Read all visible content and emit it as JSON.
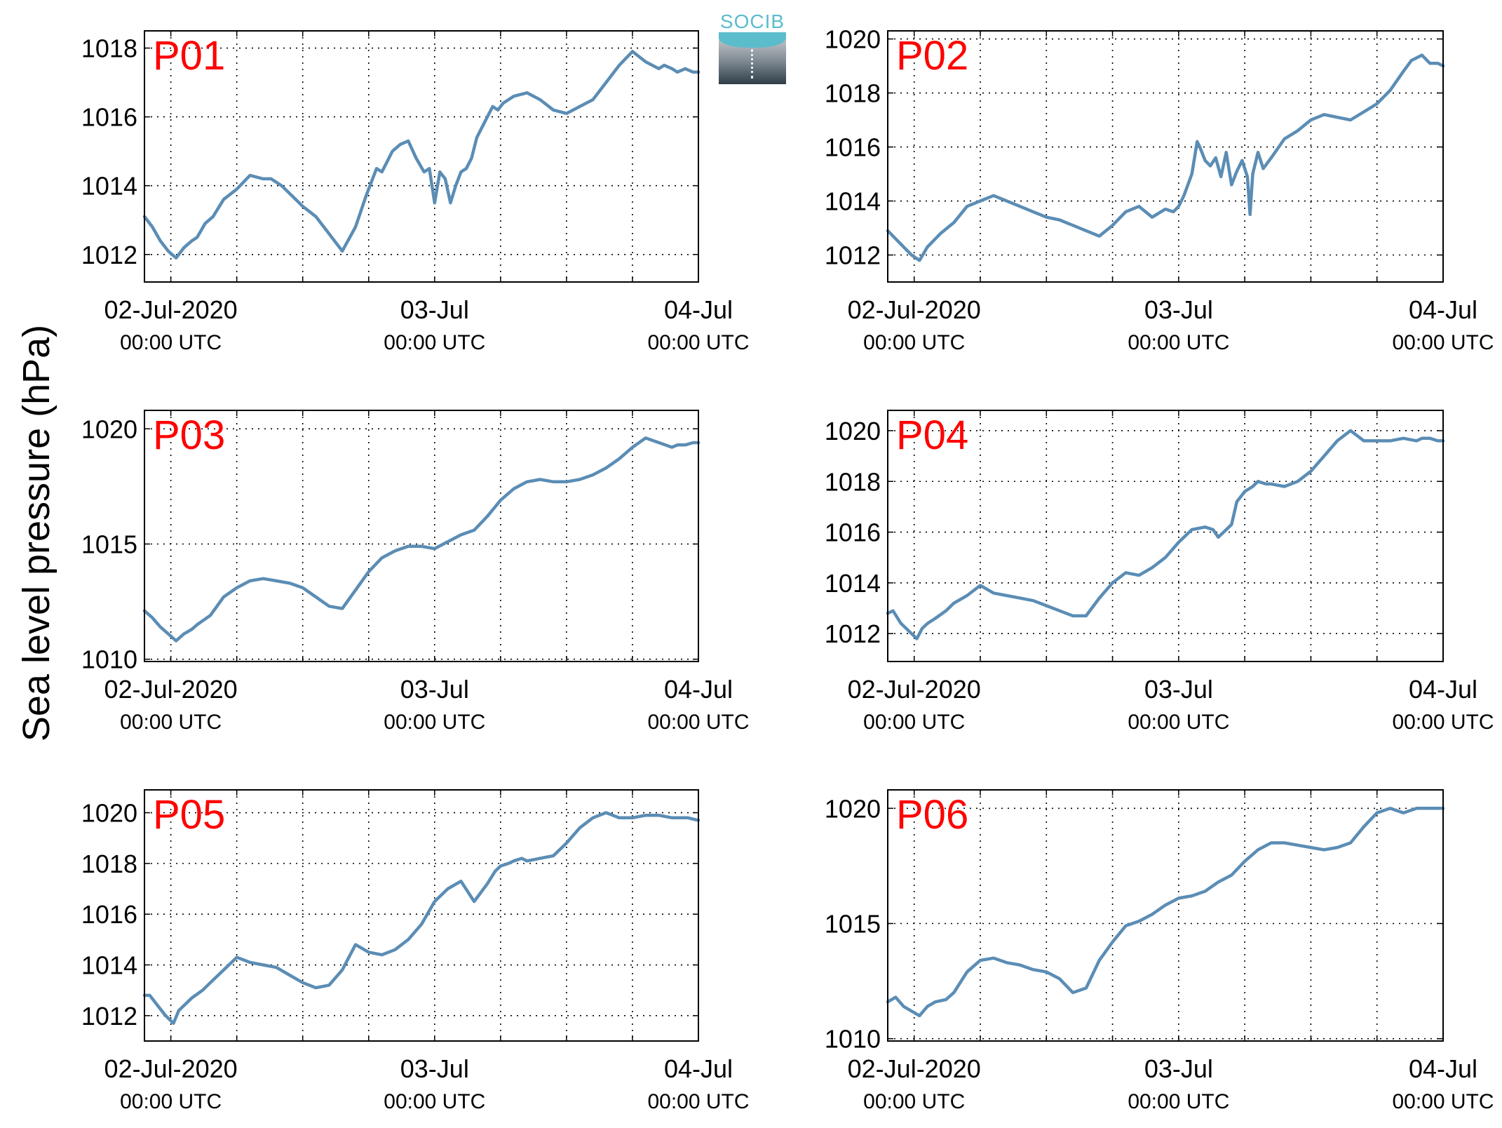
{
  "ylabel": "Sea level pressure (hPa)",
  "logo": {
    "text": "SOCIB",
    "colors": {
      "accent": "#5bbccc",
      "dark": "#2f3e48"
    }
  },
  "line_color": "#5b8db5",
  "panel_label_color": "#ff0000",
  "x_tick_labels": [
    {
      "date": "02-Jul-2020",
      "time": "00:00 UTC"
    },
    {
      "date": "03-Jul",
      "time": "00:00 UTC"
    },
    {
      "date": "04-Jul",
      "time": "00:00 UTC"
    }
  ],
  "chart_data": [
    {
      "type": "line",
      "title": "P01",
      "xlim": [
        -0.1,
        2.0
      ],
      "ylim": [
        1011.2,
        1018.5
      ],
      "yticks": [
        1012,
        1014,
        1016,
        1018
      ],
      "xticks_major": [
        0,
        1,
        2
      ],
      "grid": true,
      "x": [
        -0.1,
        -0.07,
        -0.04,
        -0.01,
        0.02,
        0.05,
        0.08,
        0.1,
        0.13,
        0.16,
        0.2,
        0.25,
        0.3,
        0.35,
        0.38,
        0.42,
        0.46,
        0.5,
        0.55,
        0.6,
        0.65,
        0.7,
        0.74,
        0.78,
        0.8,
        0.84,
        0.87,
        0.9,
        0.93,
        0.96,
        0.98,
        1.0,
        1.02,
        1.04,
        1.06,
        1.08,
        1.1,
        1.12,
        1.14,
        1.16,
        1.18,
        1.2,
        1.22,
        1.24,
        1.26,
        1.28,
        1.3,
        1.35,
        1.4,
        1.45,
        1.5,
        1.55,
        1.6,
        1.65,
        1.7,
        1.75,
        1.8,
        1.85,
        1.87,
        1.9,
        1.92,
        1.95,
        1.98,
        2.0
      ],
      "y": [
        1013.1,
        1012.8,
        1012.4,
        1012.1,
        1011.9,
        1012.2,
        1012.4,
        1012.5,
        1012.9,
        1013.1,
        1013.6,
        1013.9,
        1014.3,
        1014.2,
        1014.2,
        1014.0,
        1013.7,
        1013.4,
        1013.1,
        1012.6,
        1012.1,
        1012.8,
        1013.7,
        1014.5,
        1014.4,
        1015.0,
        1015.2,
        1015.3,
        1014.8,
        1014.4,
        1014.5,
        1013.5,
        1014.4,
        1014.2,
        1013.5,
        1014.0,
        1014.4,
        1014.5,
        1014.8,
        1015.4,
        1015.7,
        1016.0,
        1016.3,
        1016.2,
        1016.4,
        1016.5,
        1016.6,
        1016.7,
        1016.5,
        1016.2,
        1016.1,
        1016.3,
        1016.5,
        1017.0,
        1017.5,
        1017.9,
        1017.6,
        1017.4,
        1017.5,
        1017.4,
        1017.3,
        1017.4,
        1017.3,
        1017.3
      ]
    },
    {
      "type": "line",
      "title": "P02",
      "xlim": [
        -0.1,
        2.0
      ],
      "ylim": [
        1011.0,
        1020.3
      ],
      "yticks": [
        1012,
        1014,
        1016,
        1018,
        1020
      ],
      "xticks_major": [
        0,
        1,
        2
      ],
      "grid": true,
      "x": [
        -0.1,
        -0.07,
        -0.04,
        -0.01,
        0.02,
        0.05,
        0.08,
        0.1,
        0.15,
        0.2,
        0.25,
        0.3,
        0.35,
        0.4,
        0.45,
        0.5,
        0.55,
        0.6,
        0.65,
        0.7,
        0.75,
        0.8,
        0.85,
        0.9,
        0.95,
        0.98,
        1.0,
        1.02,
        1.05,
        1.07,
        1.08,
        1.1,
        1.12,
        1.14,
        1.16,
        1.18,
        1.2,
        1.22,
        1.24,
        1.26,
        1.27,
        1.28,
        1.3,
        1.32,
        1.35,
        1.4,
        1.45,
        1.5,
        1.55,
        1.6,
        1.65,
        1.7,
        1.75,
        1.8,
        1.85,
        1.88,
        1.92,
        1.95,
        1.98,
        2.0
      ],
      "y": [
        1012.9,
        1012.6,
        1012.3,
        1012.0,
        1011.8,
        1012.3,
        1012.6,
        1012.8,
        1013.2,
        1013.8,
        1014.0,
        1014.2,
        1014.0,
        1013.8,
        1013.6,
        1013.4,
        1013.3,
        1013.1,
        1012.9,
        1012.7,
        1013.1,
        1013.6,
        1013.8,
        1013.4,
        1013.7,
        1013.6,
        1013.8,
        1014.2,
        1015.0,
        1016.2,
        1016.0,
        1015.5,
        1015.3,
        1015.6,
        1014.9,
        1015.8,
        1014.6,
        1015.1,
        1015.5,
        1014.9,
        1013.5,
        1015.0,
        1015.8,
        1015.2,
        1015.6,
        1016.3,
        1016.6,
        1017.0,
        1017.2,
        1017.1,
        1017.0,
        1017.3,
        1017.6,
        1018.1,
        1018.8,
        1019.2,
        1019.4,
        1019.1,
        1019.1,
        1019.0
      ]
    },
    {
      "type": "line",
      "title": "P03",
      "xlim": [
        -0.1,
        2.0
      ],
      "ylim": [
        1009.9,
        1020.8
      ],
      "yticks": [
        1010,
        1015,
        1020
      ],
      "xticks_major": [
        0,
        1,
        2
      ],
      "grid": true,
      "x": [
        -0.1,
        -0.07,
        -0.04,
        -0.01,
        0.02,
        0.05,
        0.08,
        0.1,
        0.15,
        0.2,
        0.25,
        0.3,
        0.35,
        0.4,
        0.45,
        0.5,
        0.55,
        0.6,
        0.65,
        0.7,
        0.75,
        0.8,
        0.85,
        0.9,
        0.95,
        1.0,
        1.05,
        1.1,
        1.15,
        1.2,
        1.25,
        1.3,
        1.35,
        1.4,
        1.45,
        1.5,
        1.55,
        1.6,
        1.65,
        1.7,
        1.75,
        1.8,
        1.85,
        1.9,
        1.92,
        1.95,
        1.98,
        2.0
      ],
      "y": [
        1012.1,
        1011.8,
        1011.4,
        1011.1,
        1010.8,
        1011.1,
        1011.3,
        1011.5,
        1011.9,
        1012.7,
        1013.1,
        1013.4,
        1013.5,
        1013.4,
        1013.3,
        1013.1,
        1012.7,
        1012.3,
        1012.2,
        1013.0,
        1013.8,
        1014.4,
        1014.7,
        1014.9,
        1014.9,
        1014.8,
        1015.1,
        1015.4,
        1015.6,
        1016.2,
        1016.9,
        1017.4,
        1017.7,
        1017.8,
        1017.7,
        1017.7,
        1017.8,
        1018.0,
        1018.3,
        1018.7,
        1019.2,
        1019.6,
        1019.4,
        1019.2,
        1019.3,
        1019.3,
        1019.4,
        1019.4
      ]
    },
    {
      "type": "line",
      "title": "P04",
      "xlim": [
        -0.1,
        2.0
      ],
      "ylim": [
        1010.9,
        1020.8
      ],
      "yticks": [
        1012,
        1014,
        1016,
        1018,
        1020
      ],
      "xticks_major": [
        0,
        1,
        2
      ],
      "grid": true,
      "x": [
        -0.1,
        -0.08,
        -0.05,
        -0.02,
        0.01,
        0.03,
        0.05,
        0.08,
        0.12,
        0.15,
        0.2,
        0.25,
        0.3,
        0.35,
        0.4,
        0.45,
        0.5,
        0.55,
        0.6,
        0.65,
        0.7,
        0.75,
        0.8,
        0.85,
        0.9,
        0.95,
        1.0,
        1.05,
        1.1,
        1.13,
        1.15,
        1.17,
        1.2,
        1.22,
        1.25,
        1.28,
        1.3,
        1.33,
        1.35,
        1.4,
        1.45,
        1.5,
        1.55,
        1.6,
        1.65,
        1.7,
        1.75,
        1.8,
        1.85,
        1.9,
        1.92,
        1.95,
        1.98,
        2.0
      ],
      "y": [
        1012.8,
        1012.9,
        1012.4,
        1012.1,
        1011.8,
        1012.2,
        1012.4,
        1012.6,
        1012.9,
        1013.2,
        1013.5,
        1013.9,
        1013.6,
        1013.5,
        1013.4,
        1013.3,
        1013.1,
        1012.9,
        1012.7,
        1012.7,
        1013.4,
        1014.0,
        1014.4,
        1014.3,
        1014.6,
        1015.0,
        1015.6,
        1016.1,
        1016.2,
        1016.1,
        1015.8,
        1016.0,
        1016.3,
        1017.2,
        1017.6,
        1017.8,
        1018.0,
        1017.9,
        1017.9,
        1017.8,
        1018.0,
        1018.4,
        1019.0,
        1019.6,
        1020.0,
        1019.6,
        1019.6,
        1019.6,
        1019.7,
        1019.6,
        1019.7,
        1019.7,
        1019.6,
        1019.6
      ]
    },
    {
      "type": "line",
      "title": "P05",
      "xlim": [
        -0.1,
        2.0
      ],
      "ylim": [
        1011.0,
        1020.9
      ],
      "yticks": [
        1012,
        1014,
        1016,
        1018,
        1020
      ],
      "xticks_major": [
        0,
        1,
        2
      ],
      "grid": true,
      "x": [
        -0.1,
        -0.08,
        -0.05,
        -0.02,
        0.01,
        0.03,
        0.05,
        0.08,
        0.12,
        0.15,
        0.2,
        0.25,
        0.3,
        0.35,
        0.4,
        0.45,
        0.5,
        0.55,
        0.6,
        0.65,
        0.7,
        0.75,
        0.8,
        0.85,
        0.9,
        0.95,
        1.0,
        1.05,
        1.1,
        1.15,
        1.2,
        1.23,
        1.25,
        1.28,
        1.3,
        1.33,
        1.35,
        1.4,
        1.45,
        1.5,
        1.55,
        1.6,
        1.65,
        1.7,
        1.75,
        1.8,
        1.85,
        1.9,
        1.93,
        1.96,
        2.0
      ],
      "y": [
        1012.8,
        1012.8,
        1012.4,
        1012.0,
        1011.7,
        1012.2,
        1012.4,
        1012.7,
        1013.0,
        1013.3,
        1013.8,
        1014.3,
        1014.1,
        1014.0,
        1013.9,
        1013.6,
        1013.3,
        1013.1,
        1013.2,
        1013.8,
        1014.8,
        1014.5,
        1014.4,
        1014.6,
        1015.0,
        1015.6,
        1016.5,
        1017.0,
        1017.3,
        1016.5,
        1017.2,
        1017.7,
        1017.9,
        1018.0,
        1018.1,
        1018.2,
        1018.1,
        1018.2,
        1018.3,
        1018.8,
        1019.4,
        1019.8,
        1020.0,
        1019.8,
        1019.8,
        1019.9,
        1019.9,
        1019.8,
        1019.8,
        1019.8,
        1019.7
      ]
    },
    {
      "type": "line",
      "title": "P06",
      "xlim": [
        -0.1,
        2.0
      ],
      "ylim": [
        1009.9,
        1020.8
      ],
      "yticks": [
        1010,
        1015,
        1020
      ],
      "xticks_major": [
        0,
        1,
        2
      ],
      "grid": true,
      "x": [
        -0.1,
        -0.07,
        -0.04,
        -0.01,
        0.02,
        0.05,
        0.08,
        0.12,
        0.15,
        0.2,
        0.25,
        0.3,
        0.35,
        0.4,
        0.45,
        0.5,
        0.55,
        0.6,
        0.65,
        0.7,
        0.75,
        0.8,
        0.85,
        0.9,
        0.95,
        1.0,
        1.05,
        1.1,
        1.15,
        1.2,
        1.25,
        1.3,
        1.35,
        1.4,
        1.45,
        1.5,
        1.55,
        1.6,
        1.65,
        1.7,
        1.75,
        1.8,
        1.85,
        1.9,
        1.93,
        1.96,
        2.0
      ],
      "y": [
        1011.6,
        1011.8,
        1011.4,
        1011.2,
        1011.0,
        1011.4,
        1011.6,
        1011.7,
        1012.0,
        1012.9,
        1013.4,
        1013.5,
        1013.3,
        1013.2,
        1013.0,
        1012.9,
        1012.6,
        1012.0,
        1012.2,
        1013.4,
        1014.2,
        1014.9,
        1015.1,
        1015.4,
        1015.8,
        1016.1,
        1016.2,
        1016.4,
        1016.8,
        1017.1,
        1017.7,
        1018.2,
        1018.5,
        1018.5,
        1018.4,
        1018.3,
        1018.2,
        1018.3,
        1018.5,
        1019.2,
        1019.8,
        1020.0,
        1019.8,
        1020.0,
        1020.0,
        1020.0,
        1020.0
      ]
    }
  ]
}
